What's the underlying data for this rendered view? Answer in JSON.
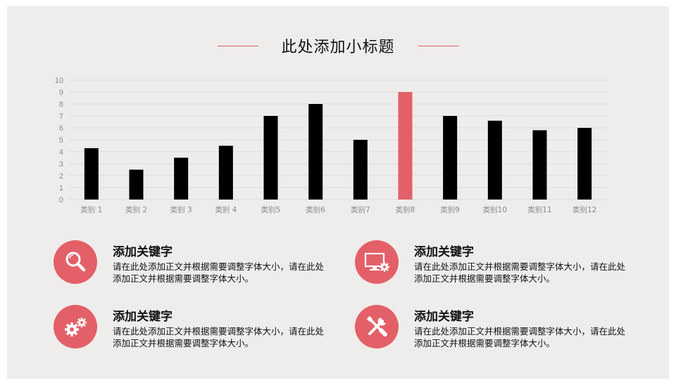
{
  "title": "此处添加小标题",
  "colors": {
    "accent": "#e36068",
    "bar": "#000000",
    "background": "#efedeb"
  },
  "chart_data": {
    "type": "bar",
    "categories": [
      "类别 1",
      "类别 2",
      "类别 3",
      "类别 4",
      "类别5",
      "类别6",
      "类别7",
      "类别8",
      "类别9",
      "类别10",
      "类别11",
      "类别12"
    ],
    "values": [
      4.3,
      2.5,
      3.5,
      4.5,
      7,
      8,
      5,
      9,
      7,
      6.6,
      5.8,
      6
    ],
    "highlight_index": 7,
    "ylim": [
      0,
      10
    ],
    "yticks": [
      0,
      1,
      2,
      3,
      4,
      5,
      6,
      7,
      8,
      9,
      10
    ],
    "grid": true,
    "title": "",
    "xlabel": "",
    "ylabel": ""
  },
  "items": [
    {
      "icon": "magnifier-icon",
      "heading": "添加关键字",
      "text": "请在此处添加正文并根据需要调整字体大小，请在此处添加正文并根据需要调整字体大小。"
    },
    {
      "icon": "monitor-gear-icon",
      "heading": "添加关键字",
      "text": "请在此处添加正文并根据需要调整字体大小，请在此处添加正文并根据需要调整字体大小。"
    },
    {
      "icon": "gears-icon",
      "heading": "添加关键字",
      "text": "请在此处添加正文并根据需要调整字体大小，请在此处添加正文并根据需要调整字体大小。"
    },
    {
      "icon": "tools-icon",
      "heading": "添加关键字",
      "text": "请在此处添加正文并根据需要调整字体大小，请在此处添加正文并根据需要调整字体大小。"
    }
  ]
}
